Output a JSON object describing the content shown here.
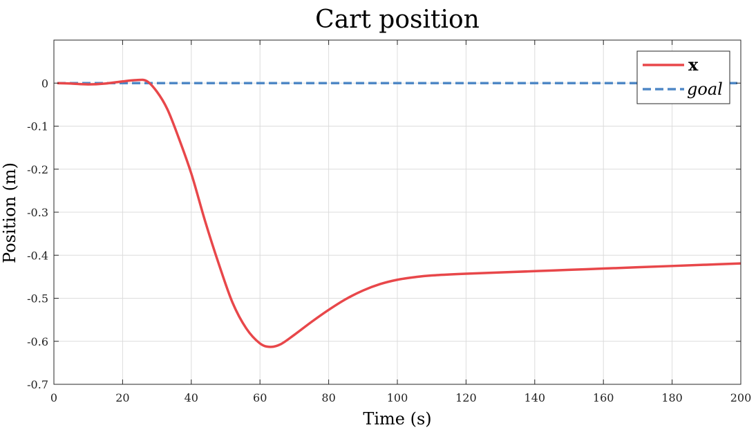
{
  "chart_data": {
    "type": "line",
    "title": "Cart position",
    "xlabel": "Time (s)",
    "ylabel": "Position (m)",
    "xlim": [
      0,
      200
    ],
    "ylim": [
      -0.7,
      0.1
    ],
    "xticks": [
      0,
      20,
      40,
      60,
      80,
      100,
      120,
      140,
      160,
      180,
      200
    ],
    "yticks": [
      -0.7,
      -0.6,
      -0.5,
      -0.4,
      -0.3,
      -0.2,
      -0.1,
      0
    ],
    "xtick_labels": [
      "0",
      "20",
      "40",
      "60",
      "80",
      "100",
      "120",
      "140",
      "160",
      "180",
      "200"
    ],
    "ytick_labels": [
      "-0.7",
      "-0.6",
      "-0.5",
      "-0.4",
      "-0.3",
      "-0.2",
      "-0.1",
      "0"
    ],
    "grid": true,
    "legend_position": "top-right",
    "series": [
      {
        "name": "x",
        "color": "#e8474a",
        "style": "solid",
        "x": [
          1,
          5,
          10,
          15,
          20,
          24,
          27,
          30,
          33,
          36,
          40,
          44,
          48,
          52,
          56,
          60,
          63,
          66,
          70,
          75,
          80,
          85,
          90,
          95,
          100,
          105,
          110,
          120,
          130,
          140,
          150,
          160,
          170,
          180,
          190,
          200
        ],
        "y": [
          0,
          -0.001,
          -0.003,
          -0.001,
          0.004,
          0.007,
          0.005,
          -0.02,
          -0.06,
          -0.12,
          -0.21,
          -0.32,
          -0.42,
          -0.51,
          -0.57,
          -0.605,
          -0.613,
          -0.607,
          -0.585,
          -0.555,
          -0.527,
          -0.502,
          -0.482,
          -0.467,
          -0.457,
          -0.451,
          -0.447,
          -0.443,
          -0.44,
          -0.437,
          -0.434,
          -0.431,
          -0.428,
          -0.425,
          -0.422,
          -0.419
        ]
      },
      {
        "name": "goal",
        "color": "#4f88c6",
        "style": "dashed",
        "x": [
          1,
          200
        ],
        "y": [
          0,
          0
        ]
      }
    ]
  }
}
